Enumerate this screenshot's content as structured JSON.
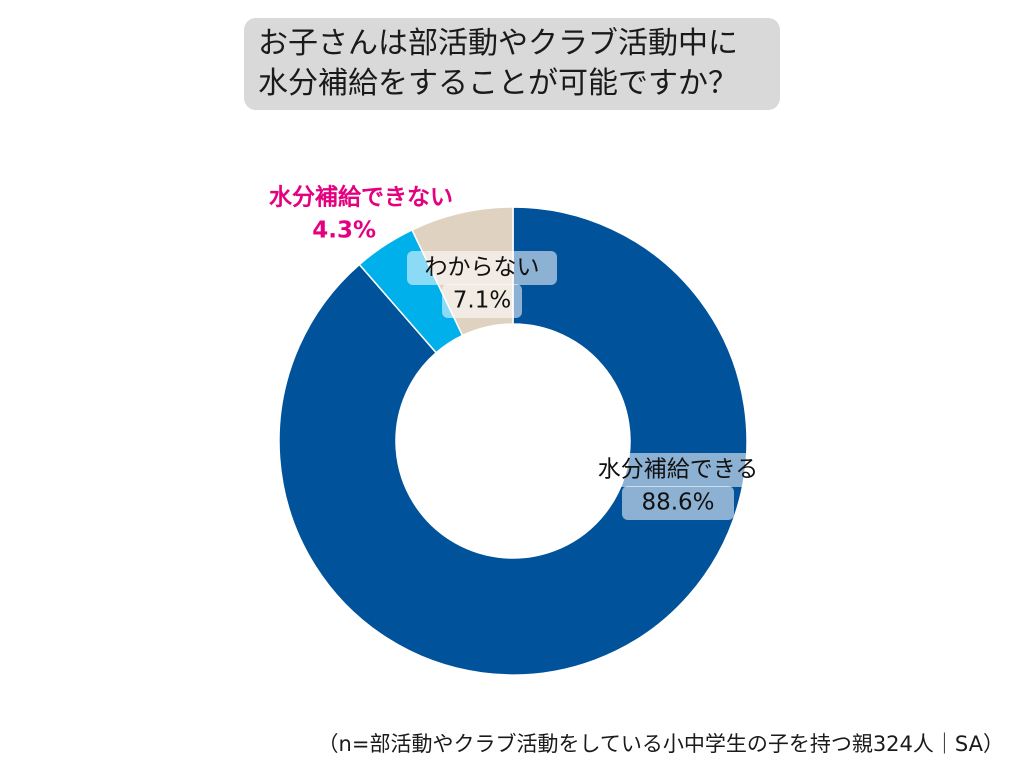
{
  "chart_data": {
    "type": "pie",
    "variant": "donut",
    "title_lines": [
      "お子さんは部活動やクラブ活動中に",
      "水分補給をすることが可能ですか？"
    ],
    "slices": [
      {
        "label": "水分補給できる",
        "value": 88.6,
        "value_label": "88.6%",
        "color": "#00529b",
        "label_color": "#111111"
      },
      {
        "label": "水分補給できない",
        "value": 4.3,
        "value_label": "4.3%",
        "color": "#00b0eb",
        "label_color": "#e4007f"
      },
      {
        "label": "わからない",
        "value": 7.1,
        "value_label": "7.1%",
        "color": "#e0d2c0",
        "label_color": "#111111"
      }
    ],
    "start": "12 o'clock",
    "direction": "clockwise",
    "note": "（n=部活動やクラブ活動をしている小中学生の子を持つ親324人｜SA）"
  }
}
